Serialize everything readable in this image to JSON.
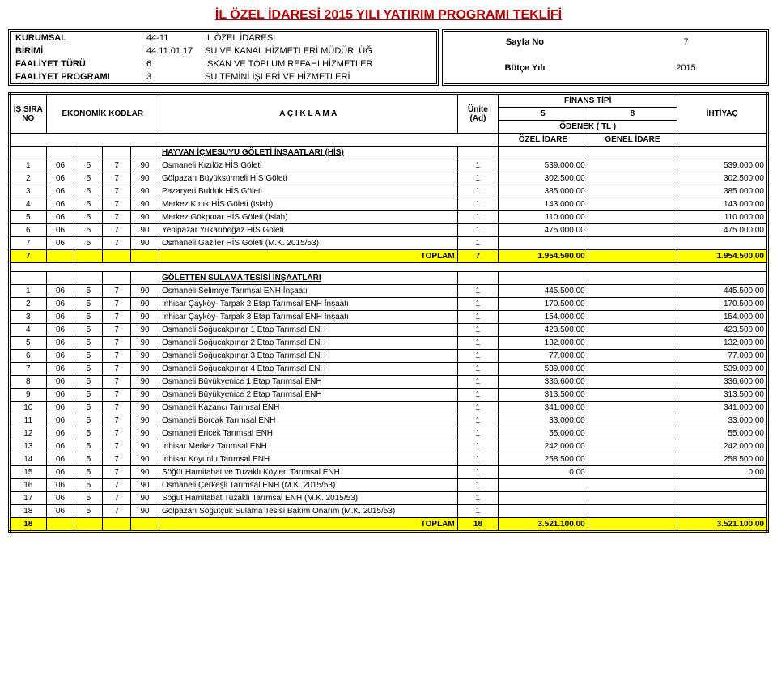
{
  "title": "İL ÖZEL İDARESİ  2015 YILI YATIRIM PROGRAMI TEKLİFİ",
  "headerLeft": {
    "rows": [
      {
        "label": "KURUMSAL",
        "code": "44-11",
        "text": "İL ÖZEL İDARESİ"
      },
      {
        "label": "BİRİMİ",
        "code": "44.11.01.17",
        "text": "SU VE KANAL HİZMETLERİ MÜDÜRLÜĞ"
      },
      {
        "label": "FAALİYET TÜRÜ",
        "code": "6",
        "text": "İSKAN VE TOPLUM REFAHI HİZMETLER"
      },
      {
        "label": "FAALİYET PROGRAMI",
        "code": "3",
        "text": "SU TEMİNİ İŞLERİ VE HİZMETLERİ"
      }
    ]
  },
  "headerRight": {
    "rows": [
      {
        "label": "Sayfa No",
        "value": "7"
      },
      {
        "label": "",
        "value": ""
      },
      {
        "label": "Bütçe Yılı",
        "value": "2015"
      },
      {
        "label": "",
        "value": ""
      }
    ]
  },
  "tableHeader": {
    "is": "İŞ SIRA NO",
    "eko": "EKONOMİK KODLAR",
    "desc": "A Ç I K L A M A",
    "unit": "Ünite (Ad)",
    "finans": "FİNANS TİPİ",
    "col5": "5",
    "col8": "8",
    "odenek": "ÖDENEK ( TL )",
    "ozel": "ÖZEL İDARE",
    "genel": "GENEL İDARE",
    "need": "İHTİYAÇ"
  },
  "section1": {
    "title": "HAYVAN İÇMESUYU GÖLETİ İNŞAATLARI (HİS)",
    "rows": [
      {
        "no": "1",
        "c1": "06",
        "c2": "5",
        "c3": "7",
        "c4": "90",
        "desc": "Osmaneli Kızılöz HİS Göleti",
        "unit": "1",
        "amt5": "539.000,00",
        "amt8": "",
        "need": "539.000,00"
      },
      {
        "no": "2",
        "c1": "06",
        "c2": "5",
        "c3": "7",
        "c4": "90",
        "desc": "Gölpazarı Büyüksürmeli HİS Göleti",
        "unit": "1",
        "amt5": "302.500,00",
        "amt8": "",
        "need": "302.500,00"
      },
      {
        "no": "3",
        "c1": "06",
        "c2": "5",
        "c3": "7",
        "c4": "90",
        "desc": "Pazaryeri Bulduk HİS Göleti",
        "unit": "1",
        "amt5": "385.000,00",
        "amt8": "",
        "need": "385.000,00"
      },
      {
        "no": "4",
        "c1": "06",
        "c2": "5",
        "c3": "7",
        "c4": "90",
        "desc": "Merkez Kınık HİS Göleti (Islah)",
        "unit": "1",
        "amt5": "143.000,00",
        "amt8": "",
        "need": "143.000,00"
      },
      {
        "no": "5",
        "c1": "06",
        "c2": "5",
        "c3": "7",
        "c4": "90",
        "desc": "Merkez Gökpınar HİS Göleti (Islah)",
        "unit": "1",
        "amt5": "110.000,00",
        "amt8": "",
        "need": "110.000,00"
      },
      {
        "no": "6",
        "c1": "06",
        "c2": "5",
        "c3": "7",
        "c4": "90",
        "desc": "Yenipazar Yukarıboğaz HİS Göleti",
        "unit": "1",
        "amt5": "475.000,00",
        "amt8": "",
        "need": "475.000,00"
      },
      {
        "no": "7",
        "c1": "06",
        "c2": "5",
        "c3": "7",
        "c4": "90",
        "desc": "Osmaneli Gaziler HİS Göleti (M.K. 2015/53)",
        "unit": "1",
        "amt5": "",
        "amt8": "",
        "need": ""
      }
    ],
    "total": {
      "no": "7",
      "labelTOPLAM": "TOPLAM",
      "unit": "7",
      "amt5": "1.954.500,00",
      "amt8": "",
      "need": "1.954.500,00"
    }
  },
  "section2": {
    "title": "GÖLETTEN SULAMA TESİSİ İNŞAATLARI",
    "rows": [
      {
        "no": "1",
        "c1": "06",
        "c2": "5",
        "c3": "7",
        "c4": "90",
        "desc": "Osmaneli Selimiye Tarımsal ENH İnşaatı",
        "unit": "1",
        "amt5": "445.500,00",
        "amt8": "",
        "need": "445.500,00"
      },
      {
        "no": "2",
        "c1": "06",
        "c2": "5",
        "c3": "7",
        "c4": "90",
        "desc": "İnhisar Çayköy- Tarpak 2 Etap Tarımsal ENH İnşaatı",
        "unit": "1",
        "amt5": "170.500,00",
        "amt8": "",
        "need": "170.500,00"
      },
      {
        "no": "3",
        "c1": "06",
        "c2": "5",
        "c3": "7",
        "c4": "90",
        "desc": "İnhisar Çayköy- Tarpak 3 Etap Tarımsal ENH İnşaatı",
        "unit": "1",
        "amt5": "154.000,00",
        "amt8": "",
        "need": "154.000,00"
      },
      {
        "no": "4",
        "c1": "06",
        "c2": "5",
        "c3": "7",
        "c4": "90",
        "desc": "Osmaneli Soğucakpınar 1 Etap Tarımsal ENH",
        "unit": "1",
        "amt5": "423.500,00",
        "amt8": "",
        "need": "423.500,00"
      },
      {
        "no": "5",
        "c1": "06",
        "c2": "5",
        "c3": "7",
        "c4": "90",
        "desc": "Osmaneli Soğucakpınar 2 Etap Tarımsal ENH",
        "unit": "1",
        "amt5": "132.000,00",
        "amt8": "",
        "need": "132.000,00"
      },
      {
        "no": "6",
        "c1": "06",
        "c2": "5",
        "c3": "7",
        "c4": "90",
        "desc": "Osmaneli Soğucakpınar 3 Etap Tarımsal ENH",
        "unit": "1",
        "amt5": "77.000,00",
        "amt8": "",
        "need": "77.000,00"
      },
      {
        "no": "7",
        "c1": "06",
        "c2": "5",
        "c3": "7",
        "c4": "90",
        "desc": "Osmaneli Soğucakpınar 4 Etap Tarımsal ENH",
        "unit": "1",
        "amt5": "539.000,00",
        "amt8": "",
        "need": "539.000,00"
      },
      {
        "no": "8",
        "c1": "06",
        "c2": "5",
        "c3": "7",
        "c4": "90",
        "desc": "Osmaneli Büyükyenice 1 Etap Tarımsal ENH",
        "unit": "1",
        "amt5": "336.600,00",
        "amt8": "",
        "need": "336.600,00"
      },
      {
        "no": "9",
        "c1": "06",
        "c2": "5",
        "c3": "7",
        "c4": "90",
        "desc": "Osmaneli Büyükyenice 2 Etap Tarımsal ENH",
        "unit": "1",
        "amt5": "313.500,00",
        "amt8": "",
        "need": "313.500,00"
      },
      {
        "no": "10",
        "c1": "06",
        "c2": "5",
        "c3": "7",
        "c4": "90",
        "desc": "Osmaneli Kazancı Tarımsal ENH",
        "unit": "1",
        "amt5": "341.000,00",
        "amt8": "",
        "need": "341.000,00"
      },
      {
        "no": "11",
        "c1": "06",
        "c2": "5",
        "c3": "7",
        "c4": "90",
        "desc": "Osmaneli Borcak Tarımsal ENH",
        "unit": "1",
        "amt5": "33.000,00",
        "amt8": "",
        "need": "33.000,00"
      },
      {
        "no": "12",
        "c1": "06",
        "c2": "5",
        "c3": "7",
        "c4": "90",
        "desc": "Osmaneli Ericek Tarımsal ENH",
        "unit": "1",
        "amt5": "55.000,00",
        "amt8": "",
        "need": "55.000,00"
      },
      {
        "no": "13",
        "c1": "06",
        "c2": "5",
        "c3": "7",
        "c4": "90",
        "desc": "İnhisar Merkez Tarımsal ENH",
        "unit": "1",
        "amt5": "242.000,00",
        "amt8": "",
        "need": "242.000,00"
      },
      {
        "no": "14",
        "c1": "06",
        "c2": "5",
        "c3": "7",
        "c4": "90",
        "desc": "İnhisar Koyunlu Tarımsal ENH",
        "unit": "1",
        "amt5": "258.500,00",
        "amt8": "",
        "need": "258.500,00"
      },
      {
        "no": "15",
        "c1": "06",
        "c2": "5",
        "c3": "7",
        "c4": "90",
        "desc": "Söğüt Hamitabat ve Tuzaklı Köyleri Tarımsal ENH",
        "unit": "1",
        "amt5": "0,00",
        "amt8": "",
        "need": "0,00"
      },
      {
        "no": "16",
        "c1": "06",
        "c2": "5",
        "c3": "7",
        "c4": "90",
        "desc": "Osmaneli Çerkeşli Tarımsal ENH (M.K. 2015/53)",
        "unit": "1",
        "amt5": "",
        "amt8": "",
        "need": ""
      },
      {
        "no": "17",
        "c1": "06",
        "c2": "5",
        "c3": "7",
        "c4": "90",
        "desc": "Söğüt Hamitabat Tuzaklı Tarımsal ENH (M.K. 2015/53)",
        "unit": "1",
        "amt5": "",
        "amt8": "",
        "need": ""
      },
      {
        "no": "18",
        "c1": "06",
        "c2": "5",
        "c3": "7",
        "c4": "90",
        "desc": "Gölpazarı Söğütçük Sulama Tesisi Bakım Onarım (M.K. 2015/53)",
        "unit": "1",
        "amt5": "",
        "amt8": "",
        "need": ""
      }
    ],
    "total": {
      "no": "18",
      "labelTOPLAM": "TOPLAM",
      "unit": "18",
      "amt5": "3.521.100,00",
      "amt8": "",
      "need": "3.521.100,00"
    }
  }
}
